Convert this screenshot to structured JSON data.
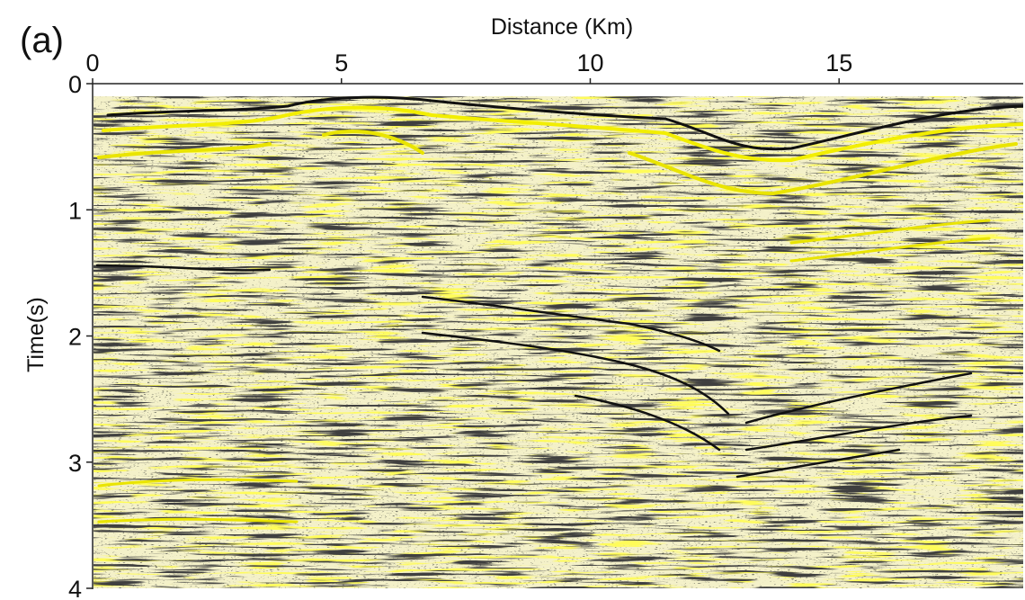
{
  "chart_data": {
    "type": "seismic",
    "panel_label": "(a)",
    "xlabel": "Distance (Km)",
    "ylabel": "Time(s)",
    "xlim": [
      0,
      18.7
    ],
    "xticks": [
      0,
      5,
      10,
      15
    ],
    "ylim": [
      0,
      4
    ],
    "yticks": [
      0,
      1,
      2,
      3,
      4
    ],
    "y_inverted": true,
    "x_axis_position": "top"
  }
}
